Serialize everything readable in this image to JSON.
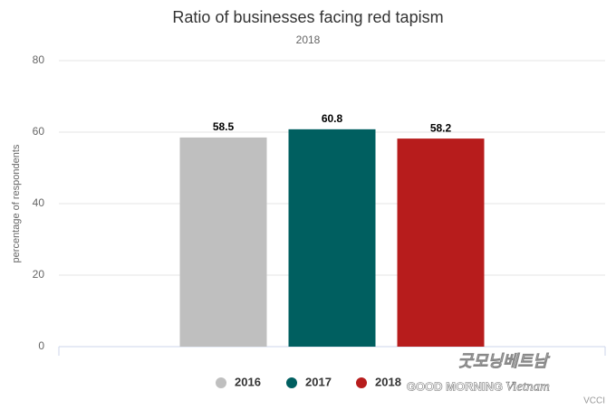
{
  "chart_data": {
    "type": "bar",
    "title": "Ratio of businesses facing red tapism",
    "subtitle": "2018",
    "y_label": "percentage of respondents",
    "categories": [
      null
    ],
    "series": [
      {
        "name": "2016",
        "color": "#bfbfbf",
        "values": [
          58.5
        ]
      },
      {
        "name": "2017",
        "color": "#005f60",
        "values": [
          60.8
        ]
      },
      {
        "name": "2018",
        "color": "#b71c1c",
        "values": [
          58.2
        ]
      }
    ],
    "ylim": [
      0,
      80
    ],
    "yticks": [
      0,
      20,
      40,
      60,
      80
    ],
    "grid": true,
    "legend": "bottom",
    "credits": "VCCI",
    "watermark": [
      "굿모닝베트남",
      "GOOD MORNING",
      "Vietnam"
    ]
  }
}
